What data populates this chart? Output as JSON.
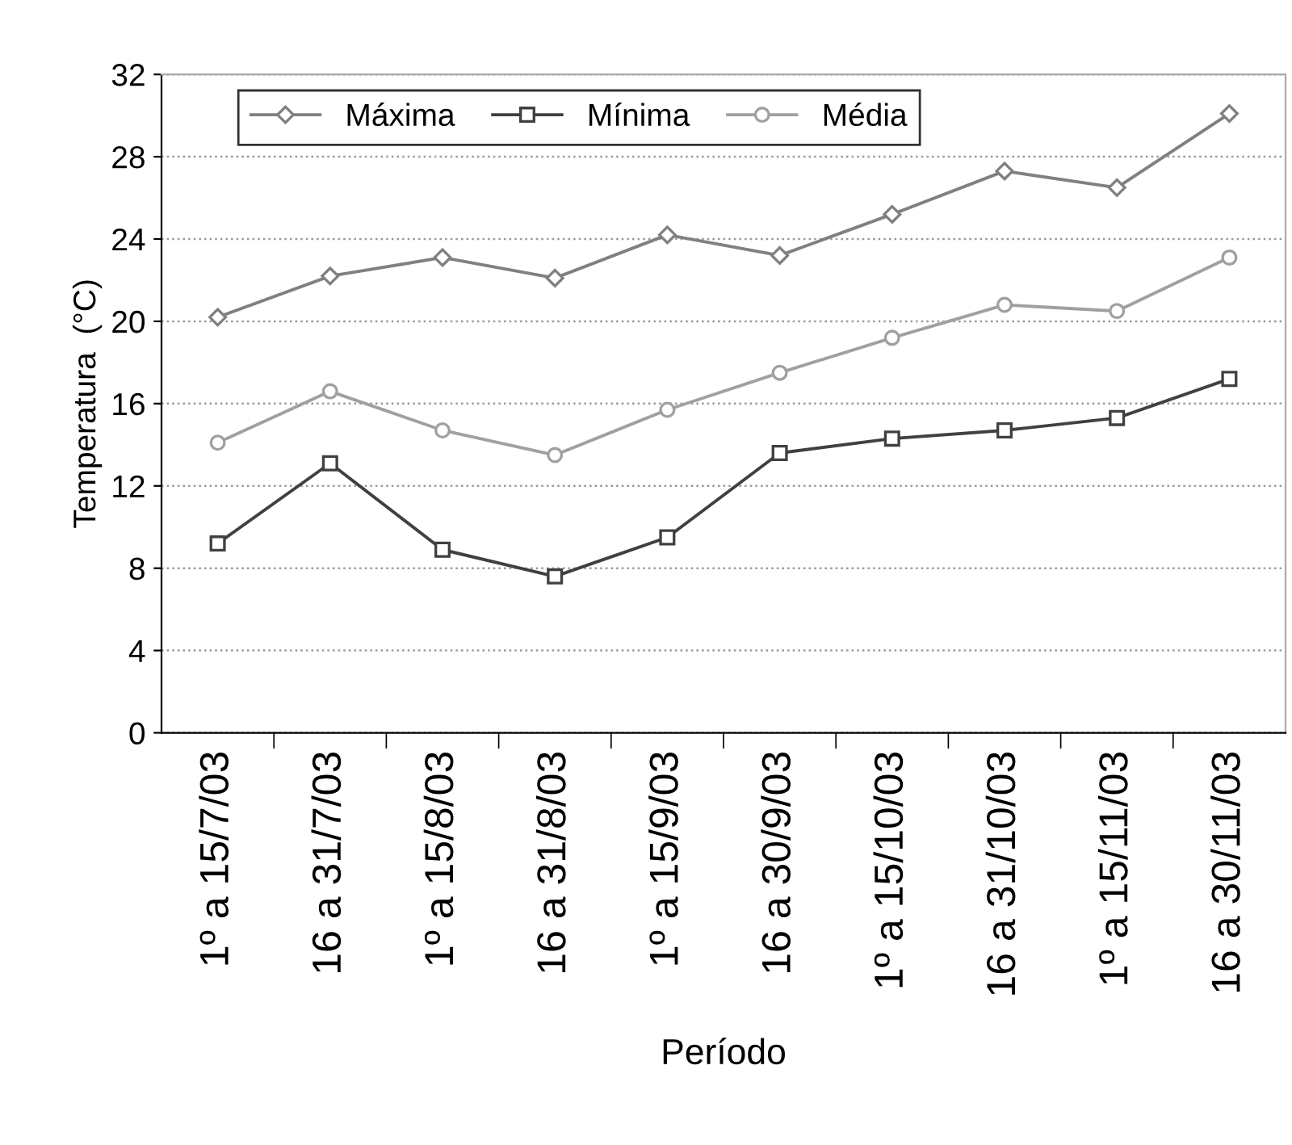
{
  "chart_data": {
    "type": "line",
    "xlabel": "Período",
    "ylabel": "Temperatura  (°C)",
    "categories": [
      "1º a 15/7/03",
      "16 a 31/7/03",
      "1º a 15/8/03",
      "16 a 31/8/03",
      "1º a 15/9/03",
      "16 a 30/9/03",
      "1º a 15/10/03",
      "16 a 31/10/03",
      "1º a 15/11/03",
      "16 a 30/11/03"
    ],
    "series": [
      {
        "name": "Máxima",
        "color": "#808080",
        "marker": "diamond",
        "values": [
          20.2,
          22.2,
          23.1,
          22.1,
          24.2,
          23.2,
          25.2,
          27.3,
          26.5,
          30.1
        ]
      },
      {
        "name": "Mínima",
        "color": "#404040",
        "marker": "square",
        "values": [
          9.2,
          13.1,
          8.9,
          7.6,
          9.5,
          13.6,
          14.3,
          14.7,
          15.3,
          17.2
        ]
      },
      {
        "name": "Média",
        "color": "#a0a0a0",
        "marker": "circle",
        "values": [
          14.1,
          16.6,
          14.7,
          13.5,
          15.7,
          17.5,
          19.2,
          20.8,
          20.5,
          23.1
        ]
      }
    ],
    "ylim": [
      0,
      32
    ],
    "yticks": [
      0,
      4,
      8,
      12,
      16,
      20,
      24,
      28,
      32
    ],
    "grid": "y",
    "legend": "top left",
    "line_style": "solid"
  }
}
